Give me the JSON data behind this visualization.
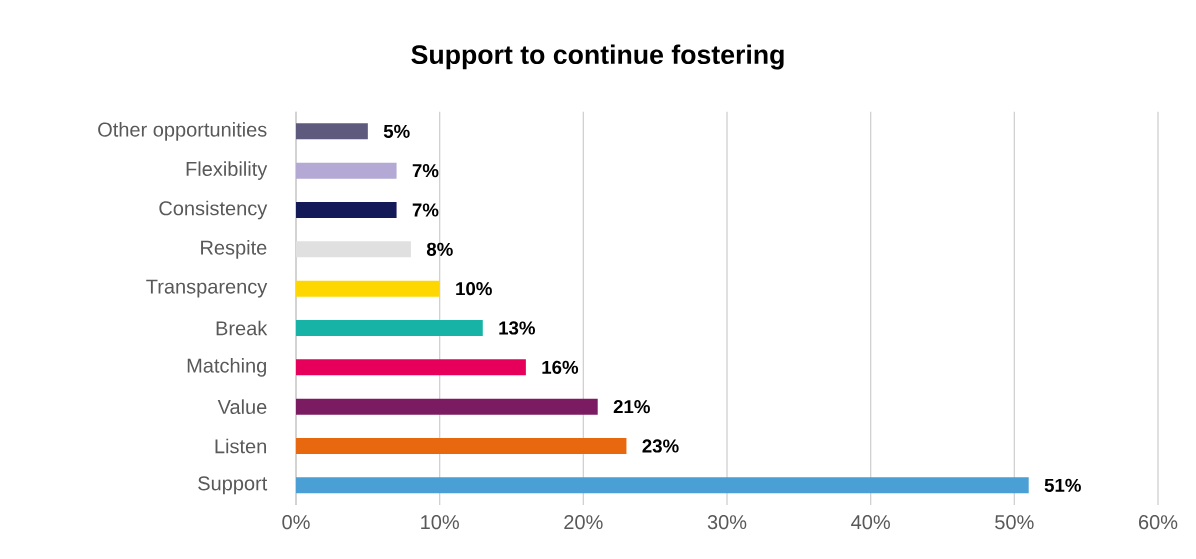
{
  "chart_data": {
    "type": "bar",
    "orientation": "horizontal",
    "title": "Support to continue fostering",
    "categories": [
      "Other opportunities",
      "Flexibility",
      "Consistency",
      "Respite",
      "Transparency",
      "Break",
      "Matching",
      "Value",
      "Listen",
      "Support"
    ],
    "values": [
      5,
      7,
      7,
      8,
      10,
      13,
      16,
      21,
      23,
      51
    ],
    "value_labels": [
      "5%",
      "7%",
      "7%",
      "8%",
      "10%",
      "13%",
      "16%",
      "21%",
      "23%",
      "51%"
    ],
    "colors": [
      "#5e5a7e",
      "#b3a9d4",
      "#141a57",
      "#e0e0e0",
      "#ffd700",
      "#17b3a6",
      "#e6005c",
      "#7b1b62",
      "#e8680f",
      "#4a9fd4"
    ],
    "xlim": [
      0,
      60
    ],
    "xticks": [
      {
        "value": 0,
        "label": "0%"
      },
      {
        "value": 10,
        "label": "10%"
      },
      {
        "value": 20,
        "label": "20%"
      },
      {
        "value": 30,
        "label": "30%"
      },
      {
        "value": 40,
        "label": "40%"
      },
      {
        "value": 50,
        "label": "50%"
      },
      {
        "value": 60,
        "label": "60%"
      }
    ],
    "grid": "x"
  }
}
